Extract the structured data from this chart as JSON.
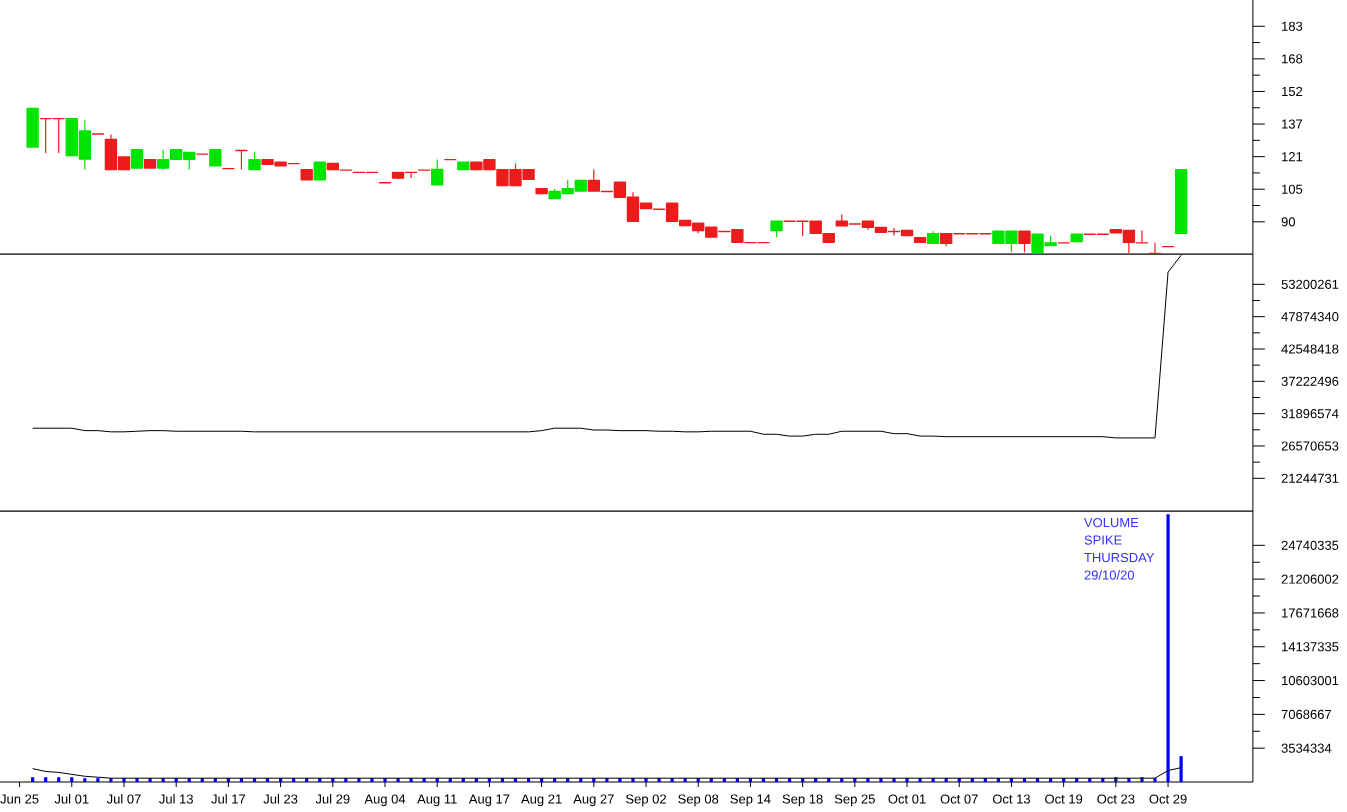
{
  "chart_data": [
    {
      "type": "candlestick",
      "tick_labels": "y",
      "categories": [
        null,
        null,
        null,
        null,
        null,
        null,
        null,
        null,
        null,
        null,
        null,
        null,
        null,
        null,
        null,
        null,
        null,
        null,
        null,
        null,
        null,
        null,
        null,
        null,
        null,
        null,
        null,
        null,
        null,
        null,
        null,
        null,
        null,
        null,
        null,
        null,
        null,
        null,
        null,
        null,
        null,
        null,
        null,
        null,
        null,
        null,
        null,
        null,
        null,
        null,
        null,
        null,
        null,
        null,
        null,
        null,
        null,
        null,
        null,
        null,
        null,
        null,
        null,
        null,
        null,
        null,
        null,
        null,
        null,
        null,
        null,
        null,
        null,
        null,
        null,
        null,
        null,
        null,
        null,
        null,
        null,
        null,
        null,
        null,
        null,
        null,
        null,
        null,
        null,
        null,
        null,
        null,
        null,
        null,
        null,
        null
      ],
      "ohlc": [
        null,
        null,
        [
          125.6,
          143.9,
          125.6,
          143.9
        ],
        [
          139.1,
          139.1,
          122.7,
          139.1
        ],
        [
          139.1,
          139.1,
          122.7,
          139.1
        ],
        [
          121.5,
          139.1,
          121.5,
          139.1
        ],
        [
          119.9,
          138.3,
          114.9,
          133.2
        ],
        [
          131.8,
          131.8,
          131.8,
          131.8
        ],
        [
          129.2,
          131.5,
          114.9,
          114.9
        ],
        [
          120.8,
          120.8,
          114.9,
          114.9
        ],
        [
          115.6,
          124.3,
          115.6,
          124.3
        ],
        [
          119.6,
          119.6,
          115.6,
          115.6
        ],
        [
          115.6,
          124.3,
          114.8,
          119.6
        ],
        [
          119.7,
          124.3,
          119.7,
          124.3
        ],
        [
          119.7,
          123.0,
          114.9,
          123.0
        ],
        [
          122.2,
          122.2,
          122.2,
          122.2
        ],
        [
          116.7,
          124.3,
          116.7,
          124.3
        ],
        [
          115.3,
          115.3,
          115.3,
          115.3
        ],
        [
          123.9,
          123.9,
          114.9,
          123.9
        ],
        [
          114.9,
          123.2,
          114.9,
          119.6
        ],
        [
          119.6,
          119.6,
          117.3,
          117.3
        ],
        [
          118.4,
          118.4,
          116.7,
          116.7
        ],
        [
          117.7,
          117.7,
          117.7,
          117.7
        ],
        [
          114.8,
          114.8,
          110.0,
          110.0
        ],
        [
          110.0,
          118.3,
          110.0,
          118.3
        ],
        [
          117.8,
          117.8,
          114.9,
          114.9
        ],
        [
          114.6,
          114.6,
          114.6,
          114.6
        ],
        [
          113.5,
          113.5,
          113.5,
          113.5
        ],
        [
          113.5,
          113.5,
          113.5,
          113.5
        ],
        [
          108.6,
          108.6,
          108.6,
          108.6
        ],
        [
          113.5,
          113.5,
          110.2,
          110.8
        ],
        [
          113.5,
          113.5,
          110.8,
          113.5
        ],
        [
          114.6,
          114.6,
          114.6,
          114.6
        ],
        [
          107.6,
          119.6,
          107.6,
          114.9
        ],
        [
          119.6,
          119.6,
          119.6,
          119.6
        ],
        [
          114.9,
          118.3,
          114.9,
          118.3
        ],
        [
          118.3,
          118.3,
          114.9,
          114.9
        ],
        [
          119.6,
          119.6,
          114.9,
          114.9
        ],
        [
          114.8,
          114.8,
          107.3,
          107.3
        ],
        [
          114.8,
          117.7,
          107.3,
          107.3
        ],
        [
          114.8,
          114.8,
          110.2,
          110.2
        ],
        [
          105.7,
          105.7,
          103.5,
          103.5
        ],
        [
          101.1,
          105.7,
          101.1,
          104.4
        ],
        [
          103.5,
          110.0,
          103.5,
          105.7
        ],
        [
          104.6,
          109.7,
          104.6,
          109.7
        ],
        [
          109.7,
          114.9,
          104.6,
          104.6
        ],
        [
          104.4,
          104.4,
          104.4,
          104.4
        ],
        [
          108.9,
          108.9,
          101.7,
          101.7
        ],
        [
          101.7,
          104.1,
          90.3,
          90.3
        ],
        [
          98.9,
          98.9,
          96.3,
          96.3
        ],
        [
          96.0,
          96.0,
          96.0,
          96.0
        ],
        [
          98.9,
          98.9,
          90.3,
          90.3
        ],
        [
          90.6,
          90.6,
          88.2,
          88.2
        ],
        [
          89.3,
          89.3,
          84.6,
          85.9
        ],
        [
          87.4,
          87.4,
          82.7,
          82.7
        ],
        [
          85.4,
          85.4,
          85.4,
          85.4
        ],
        [
          86.2,
          86.2,
          80.3,
          80.3
        ],
        [
          80.1,
          80.1,
          80.1,
          80.1
        ],
        [
          80.1,
          80.1,
          80.1,
          80.1
        ],
        [
          85.9,
          90.3,
          82.7,
          90.3
        ],
        [
          90.3,
          90.3,
          90.3,
          90.3
        ],
        [
          90.3,
          90.3,
          83.3,
          90.3
        ],
        [
          90.3,
          90.3,
          84.6,
          84.6
        ],
        [
          84.4,
          84.4,
          80.3,
          80.3
        ],
        [
          90.3,
          93.5,
          88.1,
          88.1
        ],
        [
          89.0,
          89.0,
          89.0,
          89.0
        ],
        [
          90.3,
          90.3,
          86.2,
          87.4
        ],
        [
          87.3,
          87.3,
          85.0,
          85.0
        ],
        [
          85.4,
          87.1,
          83.5,
          85.4
        ],
        [
          85.9,
          85.9,
          83.5,
          83.5
        ],
        [
          82.5,
          82.5,
          80.3,
          80.3
        ],
        [
          79.8,
          85.5,
          79.8,
          84.3
        ],
        [
          84.3,
          84.3,
          78.4,
          79.8
        ],
        [
          84.3,
          84.3,
          84.3,
          84.3
        ],
        [
          84.3,
          84.3,
          84.3,
          84.3
        ],
        [
          84.3,
          84.3,
          84.3,
          84.3
        ],
        [
          79.8,
          85.5,
          79.8,
          85.5
        ],
        [
          79.8,
          85.5,
          75.5,
          85.5
        ],
        [
          85.5,
          85.5,
          75.5,
          79.8
        ],
        [
          75.5,
          84.1,
          75.5,
          84.1
        ],
        [
          78.7,
          83.5,
          78.7,
          80.0
        ],
        [
          80.0,
          80.0,
          80.0,
          80.0
        ],
        [
          80.6,
          84.1,
          80.6,
          84.1
        ],
        [
          84.1,
          84.1,
          84.1,
          84.1
        ],
        [
          84.1,
          84.1,
          84.1,
          84.1
        ],
        [
          86.2,
          86.2,
          84.8,
          84.8
        ],
        [
          85.9,
          85.9,
          75.0,
          80.3
        ],
        [
          80.0,
          85.9,
          80.0,
          80.0
        ],
        [
          75.0,
          80.0,
          75.0,
          75.0
        ],
        [
          78.2,
          78.2,
          78.2,
          78.2
        ],
        [
          84.6,
          115.3,
          84.6,
          114.8
        ],
        null,
        null,
        null,
        null,
        null
      ],
      "colors": [
        null,
        null,
        "#00e400",
        "#ec1c1c",
        "#ec1c1c",
        "#00e400",
        "#00e400",
        "#ec1c1c",
        "#ec1c1c",
        "#ec1c1c",
        "#00e400",
        "#ec1c1c",
        "#00e400",
        "#00e400",
        "#00e400",
        "#ec1c1c",
        "#00e400",
        "#ec1c1c",
        "#ec1c1c",
        "#00e400",
        "#ec1c1c",
        "#ec1c1c",
        "#ec1c1c",
        "#ec1c1c",
        "#00e400",
        "#ec1c1c",
        "#ec1c1c",
        "#ec1c1c",
        "#ec1c1c",
        "#ec1c1c",
        "#ec1c1c",
        "#ec1c1c",
        "#ec1c1c",
        "#00e400",
        "#ec1c1c",
        "#00e400",
        "#ec1c1c",
        "#ec1c1c",
        "#ec1c1c",
        "#ec1c1c",
        "#ec1c1c",
        "#ec1c1c",
        "#00e400",
        "#00e400",
        "#00e400",
        "#ec1c1c",
        "#ec1c1c",
        "#ec1c1c",
        "#ec1c1c",
        "#ec1c1c",
        "#ec1c1c",
        "#ec1c1c",
        "#ec1c1c",
        "#ec1c1c",
        "#ec1c1c",
        "#ec1c1c",
        "#ec1c1c",
        "#ec1c1c",
        "#ec1c1c",
        "#00e400",
        "#ec1c1c",
        "#ec1c1c",
        "#ec1c1c",
        "#ec1c1c",
        "#ec1c1c",
        "#ec1c1c",
        "#ec1c1c",
        "#ec1c1c",
        "#ec1c1c",
        "#ec1c1c",
        "#ec1c1c",
        "#00e400",
        "#ec1c1c",
        "#ec1c1c",
        "#ec1c1c",
        "#ec1c1c",
        "#00e400",
        "#00e400",
        "#ec1c1c",
        "#00e400",
        "#00e400",
        "#ec1c1c",
        "#00e400",
        "#ec1c1c",
        "#ec1c1c",
        "#ec1c1c",
        "#ec1c1c",
        "#ec1c1c",
        "#ec1c1c",
        "#ec1c1c",
        "#00e400",
        null,
        null,
        null,
        null,
        null
      ],
      "ylim": [
        74.7,
        195.5
      ],
      "yticks": [
        90,
        {
          "value": 97.75,
          "label": null
        },
        {
          "value": 105.5,
          "label": "105"
        },
        {
          "value": 113.25,
          "label": null
        },
        121,
        {
          "value": 128.75,
          "label": null
        },
        {
          "value": 136.5,
          "label": "137"
        },
        {
          "value": 144.25,
          "label": null
        },
        152,
        {
          "value": 159.75,
          "label": null
        },
        {
          "value": 167.5,
          "label": "168"
        },
        {
          "value": 175.25,
          "label": null
        },
        183
      ]
    },
    {
      "type": "line",
      "tick_labels": "y",
      "color": "#000000",
      "categories": [
        null,
        null,
        null,
        null,
        null,
        null,
        null,
        null,
        null,
        null,
        null,
        null,
        null,
        null,
        null,
        null,
        null,
        null,
        null,
        null,
        null,
        null,
        null,
        null,
        null,
        null,
        null,
        null,
        null,
        null,
        null,
        null,
        null,
        null,
        null,
        null,
        null,
        null,
        null,
        null,
        null,
        null,
        null,
        null,
        null,
        null,
        null,
        null,
        null,
        null,
        null,
        null,
        null,
        null,
        null,
        null,
        null,
        null,
        null,
        null,
        null,
        null,
        null,
        null,
        null,
        null,
        null,
        null,
        null,
        null,
        null,
        null,
        null,
        null,
        null,
        null,
        null,
        null,
        null,
        null,
        null,
        null,
        null,
        null,
        null,
        null,
        null,
        null,
        null,
        null,
        null,
        null,
        null,
        null,
        null,
        null
      ],
      "values": [
        null,
        null,
        29500000,
        29500000,
        29500000,
        29500000,
        29100000,
        29100000,
        28900000,
        28900000,
        29000000,
        29100000,
        29100000,
        29000000,
        29000000,
        29000000,
        29000000,
        29000000,
        29000000,
        28900000,
        28900000,
        28900000,
        28900000,
        28900000,
        28900000,
        28900000,
        28900000,
        28900000,
        28900000,
        28900000,
        28900000,
        28900000,
        28900000,
        28900000,
        28900000,
        28900000,
        28900000,
        28900000,
        28900000,
        28900000,
        28900000,
        29100000,
        29500000,
        29500000,
        29500000,
        29200000,
        29200000,
        29100000,
        29100000,
        29100000,
        29000000,
        29000000,
        28900000,
        28900000,
        29000000,
        29000000,
        29000000,
        29000000,
        28500000,
        28500000,
        28200000,
        28200000,
        28500000,
        28500000,
        29000000,
        29000000,
        29000000,
        29000000,
        28600000,
        28600000,
        28200000,
        28200000,
        28100000,
        28100000,
        28100000,
        28100000,
        28100000,
        28100000,
        28100000,
        28100000,
        28100000,
        28100000,
        28100000,
        28100000,
        28100000,
        27900000,
        27900000,
        27900000,
        27900000,
        55200000,
        58000000,
        null,
        null,
        null,
        null,
        null
      ],
      "ylim": [
        15860000,
        58200000
      ],
      "yticks": [
        21244731,
        {
          "value": 23907692,
          "label": null
        },
        26570653,
        {
          "value": 29233614,
          "label": null
        },
        31896574,
        {
          "value": 34559535,
          "label": null
        },
        37222496,
        {
          "value": 39885457,
          "label": null
        },
        42548418,
        {
          "value": 45211379,
          "label": null
        },
        47874340,
        {
          "value": 50537301,
          "label": null
        },
        53200261
      ]
    },
    {
      "type": "bar",
      "categories": [
        null,
        "Jun 25",
        null,
        null,
        null,
        "Jul 01",
        null,
        null,
        null,
        "Jul 07",
        null,
        null,
        null,
        "Jul 13",
        null,
        null,
        null,
        "Jul 17",
        null,
        null,
        null,
        "Jul 23",
        null,
        null,
        null,
        "Jul 29",
        null,
        null,
        null,
        "Aug 04",
        null,
        null,
        null,
        "Aug 11",
        null,
        null,
        null,
        "Aug 17",
        null,
        null,
        null,
        "Aug 21",
        null,
        null,
        null,
        "Aug 27",
        null,
        null,
        null,
        "Sep 02",
        null,
        null,
        null,
        "Sep 08",
        null,
        null,
        null,
        "Sep 14",
        null,
        null,
        null,
        "Sep 18",
        null,
        null,
        null,
        "Sep 25",
        null,
        null,
        null,
        "Oct 01",
        null,
        null,
        null,
        "Oct 07",
        null,
        null,
        null,
        "Oct 13",
        null,
        null,
        null,
        "Oct 19",
        null,
        null,
        null,
        "Oct 23",
        null,
        null,
        null,
        "Oct 29",
        null,
        null,
        null,
        null,
        null,
        null
      ],
      "series": [
        {
          "type": "bar",
          "color": "#0000ff",
          "values": [
            null,
            null,
            500000,
            500000,
            500000,
            500000,
            400000,
            400000,
            400000,
            400000,
            400000,
            400000,
            400000,
            400000,
            400000,
            400000,
            400000,
            400000,
            400000,
            400000,
            400000,
            400000,
            400000,
            400000,
            400000,
            400000,
            400000,
            400000,
            400000,
            400000,
            400000,
            400000,
            400000,
            400000,
            400000,
            400000,
            400000,
            400000,
            400000,
            400000,
            400000,
            400000,
            400000,
            400000,
            400000,
            400000,
            400000,
            400000,
            400000,
            400000,
            400000,
            400000,
            400000,
            400000,
            400000,
            400000,
            400000,
            400000,
            400000,
            400000,
            400000,
            400000,
            400000,
            400000,
            400000,
            400000,
            400000,
            400000,
            400000,
            400000,
            400000,
            400000,
            400000,
            400000,
            400000,
            400000,
            400000,
            400000,
            400000,
            400000,
            400000,
            400000,
            400000,
            400000,
            400000,
            500000,
            400000,
            500000,
            400000,
            28000000,
            2700000,
            null,
            null,
            null,
            null,
            null
          ]
        },
        {
          "type": "line",
          "color": "#000000",
          "values": [
            null,
            null,
            1400000,
            1100000,
            1000000,
            800000,
            600000,
            500000,
            400000,
            400000,
            400000,
            400000,
            400000,
            400000,
            400000,
            400000,
            400000,
            400000,
            400000,
            400000,
            400000,
            400000,
            400000,
            400000,
            400000,
            400000,
            400000,
            400000,
            400000,
            400000,
            400000,
            400000,
            400000,
            400000,
            400000,
            400000,
            400000,
            400000,
            400000,
            400000,
            400000,
            400000,
            400000,
            400000,
            400000,
            400000,
            400000,
            400000,
            400000,
            400000,
            400000,
            400000,
            400000,
            400000,
            400000,
            400000,
            400000,
            400000,
            400000,
            400000,
            400000,
            400000,
            400000,
            400000,
            400000,
            400000,
            400000,
            400000,
            400000,
            400000,
            400000,
            400000,
            400000,
            400000,
            400000,
            400000,
            400000,
            400000,
            400000,
            400000,
            400000,
            400000,
            400000,
            400000,
            400000,
            400000,
            400000,
            400000,
            400000,
            1200000,
            1500000,
            null,
            null,
            null,
            null,
            null
          ]
        }
      ],
      "ylim": [
        0,
        28330000
      ],
      "yticks": [
        3534334,
        {
          "value": 5301500,
          "label": null
        },
        7068667,
        {
          "value": 8835834,
          "label": null
        },
        10603001,
        {
          "value": 12370168,
          "label": null
        },
        14137335,
        {
          "value": 15904502,
          "label": null
        },
        17671668,
        {
          "value": 19438835,
          "label": null
        },
        21206002,
        {
          "value": 22973168,
          "label": null
        },
        24740335
      ],
      "annotations": [
        "VOLUME SPIKE THURSDAY 29/10/20"
      ]
    }
  ]
}
